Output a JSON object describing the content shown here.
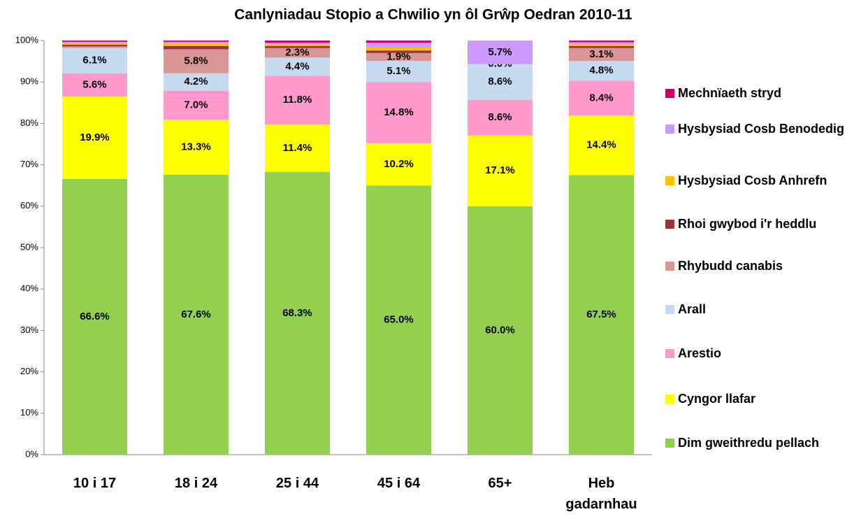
{
  "chart_data": {
    "type": "stacked_bar",
    "title": "Canlyniadau Stopio a Chwilio yn ôl Grŵp Oedran 2010-11",
    "categories": [
      "10 i 17",
      "18 i 24",
      "25 i 44",
      "45 i 64",
      "65+",
      "Heb gadarnhau"
    ],
    "ylim": [
      0,
      100
    ],
    "yticks": [
      {
        "value": 0,
        "label": "0%"
      },
      {
        "value": 10,
        "label": "10%"
      },
      {
        "value": 20,
        "label": "20%"
      },
      {
        "value": 30,
        "label": "30%"
      },
      {
        "value": 40,
        "label": "40%"
      },
      {
        "value": 50,
        "label": "50%"
      },
      {
        "value": 60,
        "label": "60%"
      },
      {
        "value": 70,
        "label": "70%"
      },
      {
        "value": 80,
        "label": "80%"
      },
      {
        "value": 90,
        "label": "90%"
      },
      {
        "value": 100,
        "label": "100%"
      }
    ],
    "grid": false,
    "legend": "right",
    "series": [
      {
        "name": "Dim gweithredu pellach",
        "color": "#92d050",
        "values": [
          66.6,
          67.6,
          68.3,
          65.0,
          60.0,
          67.5
        ],
        "value_labels": [
          "66.6%",
          "67.6%",
          "68.3%",
          "65.0%",
          "60.0%",
          "67.5%"
        ]
      },
      {
        "name": "Cyngor llafar",
        "color": "#ffff00",
        "values": [
          19.9,
          13.3,
          11.4,
          10.2,
          17.1,
          14.4
        ],
        "value_labels": [
          "19.9%",
          "13.3%",
          "11.4%",
          "10.2%",
          "17.1%",
          "14.4%"
        ]
      },
      {
        "name": "Arestio",
        "color": "#ff99cc",
        "values": [
          5.6,
          7.0,
          11.8,
          14.8,
          8.6,
          8.4
        ],
        "value_labels": [
          "5.6%",
          "7.0%",
          "11.8%",
          "14.8%",
          "8.6%",
          "8.4%"
        ]
      },
      {
        "name": "Arall",
        "color": "#c5d9f1",
        "values": [
          6.1,
          4.2,
          4.4,
          5.1,
          8.6,
          4.8
        ],
        "value_labels": [
          "6.1%",
          "4.2%",
          "4.4%",
          "5.1%",
          "8.6%",
          "4.8%"
        ]
      },
      {
        "name": "Rhybudd canabis",
        "color": "#da9694",
        "values": [
          0.4,
          5.8,
          2.3,
          1.9,
          0.0,
          3.1
        ],
        "value_labels": [
          null,
          "5.8%",
          "2.3%",
          "1.9%",
          "0.0%",
          "3.1%"
        ]
      },
      {
        "name": "Rhoi gwybod i'r heddlu",
        "color": "#953735",
        "values": [
          0.4,
          0.8,
          0.5,
          0.6,
          0.0,
          0.5
        ]
      },
      {
        "name": "Hysbysiad Cosb Anhrefn",
        "color": "#ffc000",
        "values": [
          0.5,
          0.6,
          0.4,
          0.8,
          0.0,
          0.4
        ]
      },
      {
        "name": "Hysbysiad Cosb Benodedig",
        "color": "#cc99ff",
        "values": [
          0.2,
          0.4,
          0.4,
          1.1,
          5.7,
          0.5
        ],
        "value_labels": [
          null,
          null,
          null,
          null,
          "5.7%",
          null
        ]
      },
      {
        "name": "Mechnïaeth stryd",
        "color": "#cc0066",
        "values": [
          0.3,
          0.3,
          0.5,
          0.5,
          0.0,
          0.4
        ]
      }
    ]
  }
}
